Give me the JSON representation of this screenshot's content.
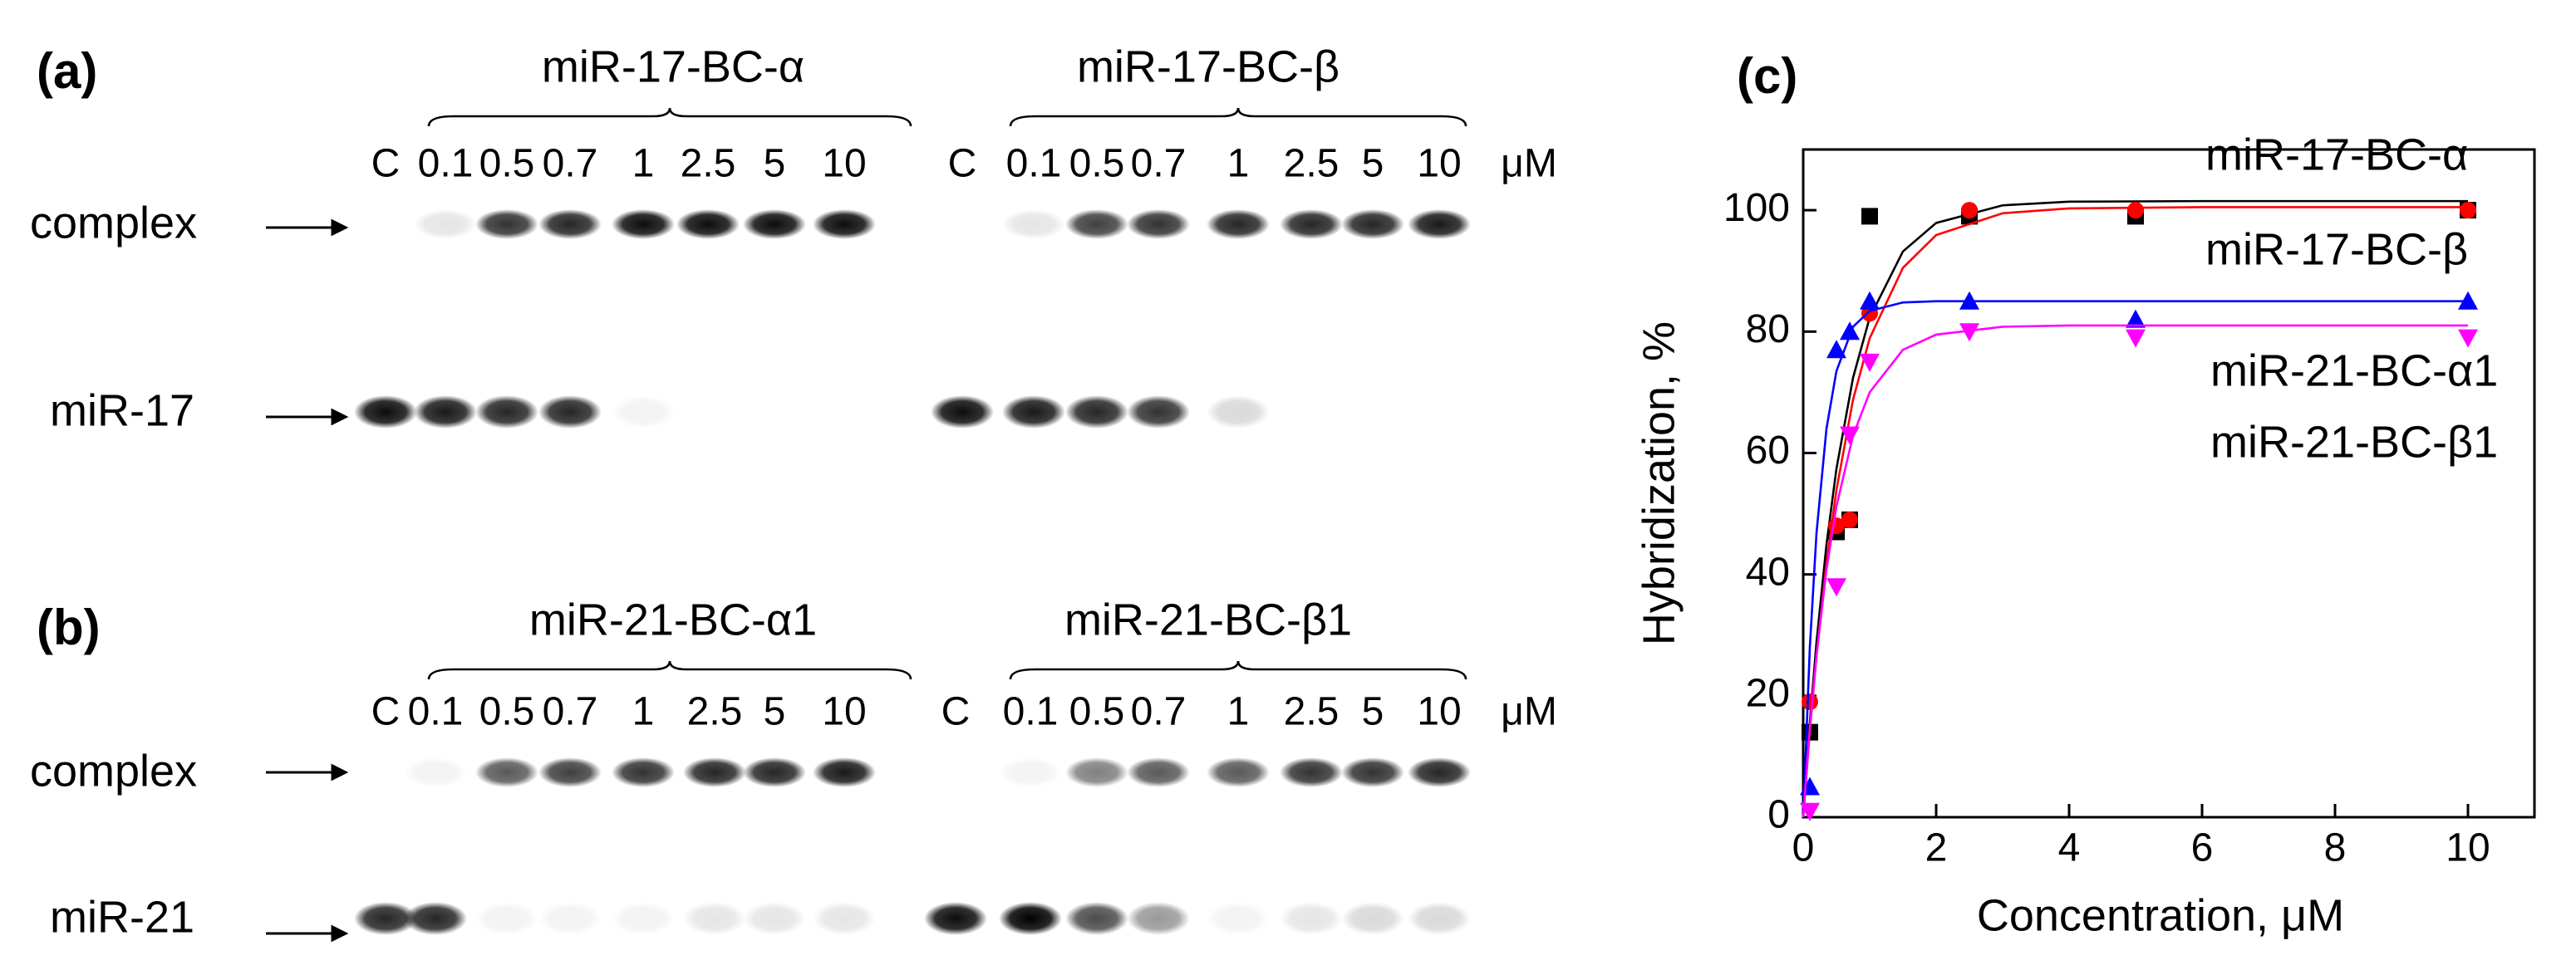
{
  "panels": [
    {
      "label": "(a)",
      "unit": "μM",
      "markers": [
        "complex",
        "miR-17"
      ],
      "groups": [
        {
          "title": "miR-17-BC-α",
          "lanes": [
            "C",
            "0.1",
            "0.5",
            "0.7",
            "1",
            "2.5",
            "5",
            "10"
          ]
        },
        {
          "title": "miR-17-BC-β",
          "lanes": [
            "C",
            "0.1",
            "0.5",
            "0.7",
            "1",
            "2.5",
            "5",
            "10"
          ]
        }
      ]
    },
    {
      "label": "(b)",
      "unit": "μM",
      "markers": [
        "complex",
        "miR-21"
      ],
      "groups": [
        {
          "title": "miR-21-BC-α1",
          "lanes": [
            "C",
            "0.1",
            "0.5",
            "0.7",
            "1",
            "2.5",
            "5",
            "10"
          ]
        },
        {
          "title": "miR-21-BC-β1",
          "lanes": [
            "C",
            "0.1",
            "0.5",
            "0.7",
            "1",
            "2.5",
            "5",
            "10"
          ]
        }
      ]
    }
  ],
  "chart_data": {
    "type": "scatter",
    "panel_label": "(c)",
    "x_label": "Concentration, μM",
    "y_label": "Hybridization, %",
    "xlim": [
      0,
      11
    ],
    "ylim": [
      0,
      110
    ],
    "xticks": [
      0,
      2,
      4,
      6,
      8,
      10
    ],
    "yticks": [
      0,
      20,
      40,
      60,
      80,
      100
    ],
    "x": [
      0.1,
      0.5,
      0.7,
      1,
      2.5,
      5,
      10
    ],
    "fit_x": [
      0,
      0.1,
      0.2,
      0.35,
      0.5,
      0.75,
      1,
      1.5,
      2,
      3,
      4,
      6,
      10
    ],
    "series": [
      {
        "name": "miR-17-BC-α",
        "color": "#000000",
        "marker": "square",
        "values": [
          14,
          47,
          49,
          99,
          99,
          99,
          100
        ],
        "fit": [
          0,
          15.6,
          28.8,
          44.9,
          57.4,
          72.4,
          82.3,
          93.2,
          97.9,
          100.8,
          101.4,
          101.5,
          101.5
        ]
      },
      {
        "name": "miR-17-BC-β",
        "color": "#ff0000",
        "marker": "circle",
        "values": [
          19,
          48,
          49,
          83,
          100,
          100,
          100
        ],
        "fit": [
          0,
          14.3,
          26.6,
          41.8,
          53.9,
          68.8,
          78.9,
          90.5,
          95.9,
          99.5,
          100.3,
          100.5,
          100.5
        ]
      },
      {
        "name": "miR-21-BC-α1",
        "color": "#0000ff",
        "marker": "triangle-up",
        "values": [
          5,
          77,
          80,
          85,
          85,
          82,
          85
        ],
        "fit": [
          0,
          28.0,
          46.8,
          64.0,
          73.5,
          80.8,
          83.4,
          84.8,
          85,
          85,
          85,
          85,
          85
        ]
      },
      {
        "name": "miR-21-BC-β1",
        "color": "#ff00ff",
        "marker": "triangle-down",
        "values": [
          1,
          38,
          63,
          75,
          80,
          79,
          79
        ],
        "fit": [
          0,
          14.7,
          26.7,
          40.8,
          51.2,
          62.9,
          70.0,
          77.0,
          79.5,
          80.8,
          81,
          81,
          81
        ]
      }
    ]
  }
}
